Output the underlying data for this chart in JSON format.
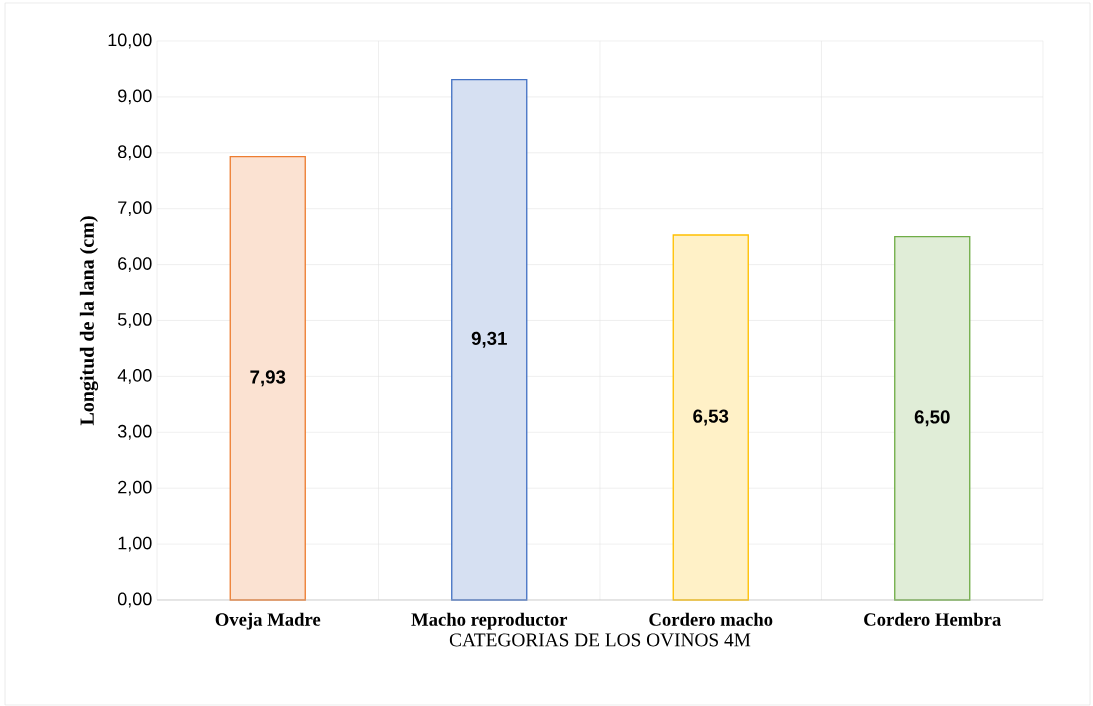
{
  "chart_data": {
    "type": "bar",
    "xlabel": "CATEGORIAS DE LOS OVINOS 4M",
    "ylabel": "Longitud de la lana (cm)",
    "categories": [
      "Oveja Madre",
      "Macho reproductor",
      "Cordero macho",
      "Cordero Hembra"
    ],
    "values": [
      7.93,
      9.31,
      6.53,
      6.5
    ],
    "value_labels": [
      "7,93",
      "9,31",
      "6,53",
      "6,50"
    ],
    "colors": [
      "#ed7d31",
      "#4472c4",
      "#ffc000",
      "#70ad47"
    ],
    "ylim": [
      0,
      10
    ],
    "yticks": [
      {
        "value": 0,
        "label": "0,00"
      },
      {
        "value": 1,
        "label": "1,00"
      },
      {
        "value": 2,
        "label": "2,00"
      },
      {
        "value": 3,
        "label": "3,00"
      },
      {
        "value": 4,
        "label": "4,00"
      },
      {
        "value": 5,
        "label": "5,00"
      },
      {
        "value": 6,
        "label": "6,00"
      },
      {
        "value": 7,
        "label": "7,00"
      },
      {
        "value": 8,
        "label": "8,00"
      },
      {
        "value": 9,
        "label": "9,00"
      },
      {
        "value": 10,
        "label": "10,00"
      }
    ],
    "grid": true
  }
}
